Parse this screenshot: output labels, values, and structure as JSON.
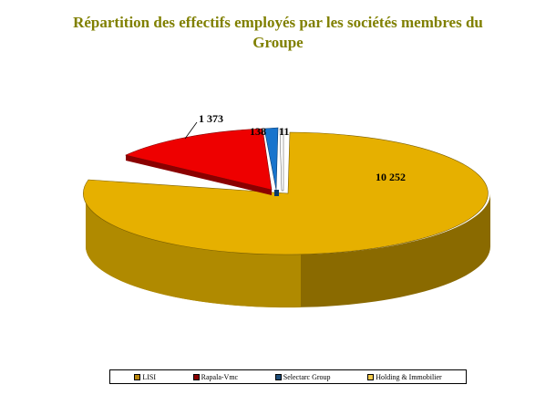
{
  "chart_data": {
    "type": "pie",
    "title": "Répartition des effectifs employés par les sociétés membres du Groupe",
    "title_lines": [
      "Répartition des effectifs employés par les sociétés membres du",
      "Groupe"
    ],
    "slices": [
      {
        "name": "LISI",
        "value": 0,
        "label": "",
        "color": "#b8860b"
      },
      {
        "name": "Rapala-Vmc",
        "value": 1373,
        "label": "1 373",
        "color": "#ee0000",
        "side": "#8b0000"
      },
      {
        "name": "Selectarc Group",
        "value": 138,
        "label": "138",
        "color": "#1874cd",
        "side": "#0b3a6b"
      },
      {
        "name": "Holding & Immobilier",
        "value": 11,
        "label": "11",
        "color": "#ffffff",
        "side": "#d0d0d0"
      },
      {
        "name": "",
        "value": 10252,
        "label": "10 252",
        "color": "#e6b000",
        "side": "#8a6a00"
      }
    ],
    "legend": [
      {
        "name": "LISI",
        "color": "#b8860b"
      },
      {
        "name": "Rapala-Vmc",
        "color": "#8b0000"
      },
      {
        "name": "Selectarc Group",
        "color": "#1f4e79"
      },
      {
        "name": "Holding & Immobilier",
        "color": "#f2c94c"
      }
    ],
    "legend_position": "bottom",
    "style": "3d-exploded"
  }
}
